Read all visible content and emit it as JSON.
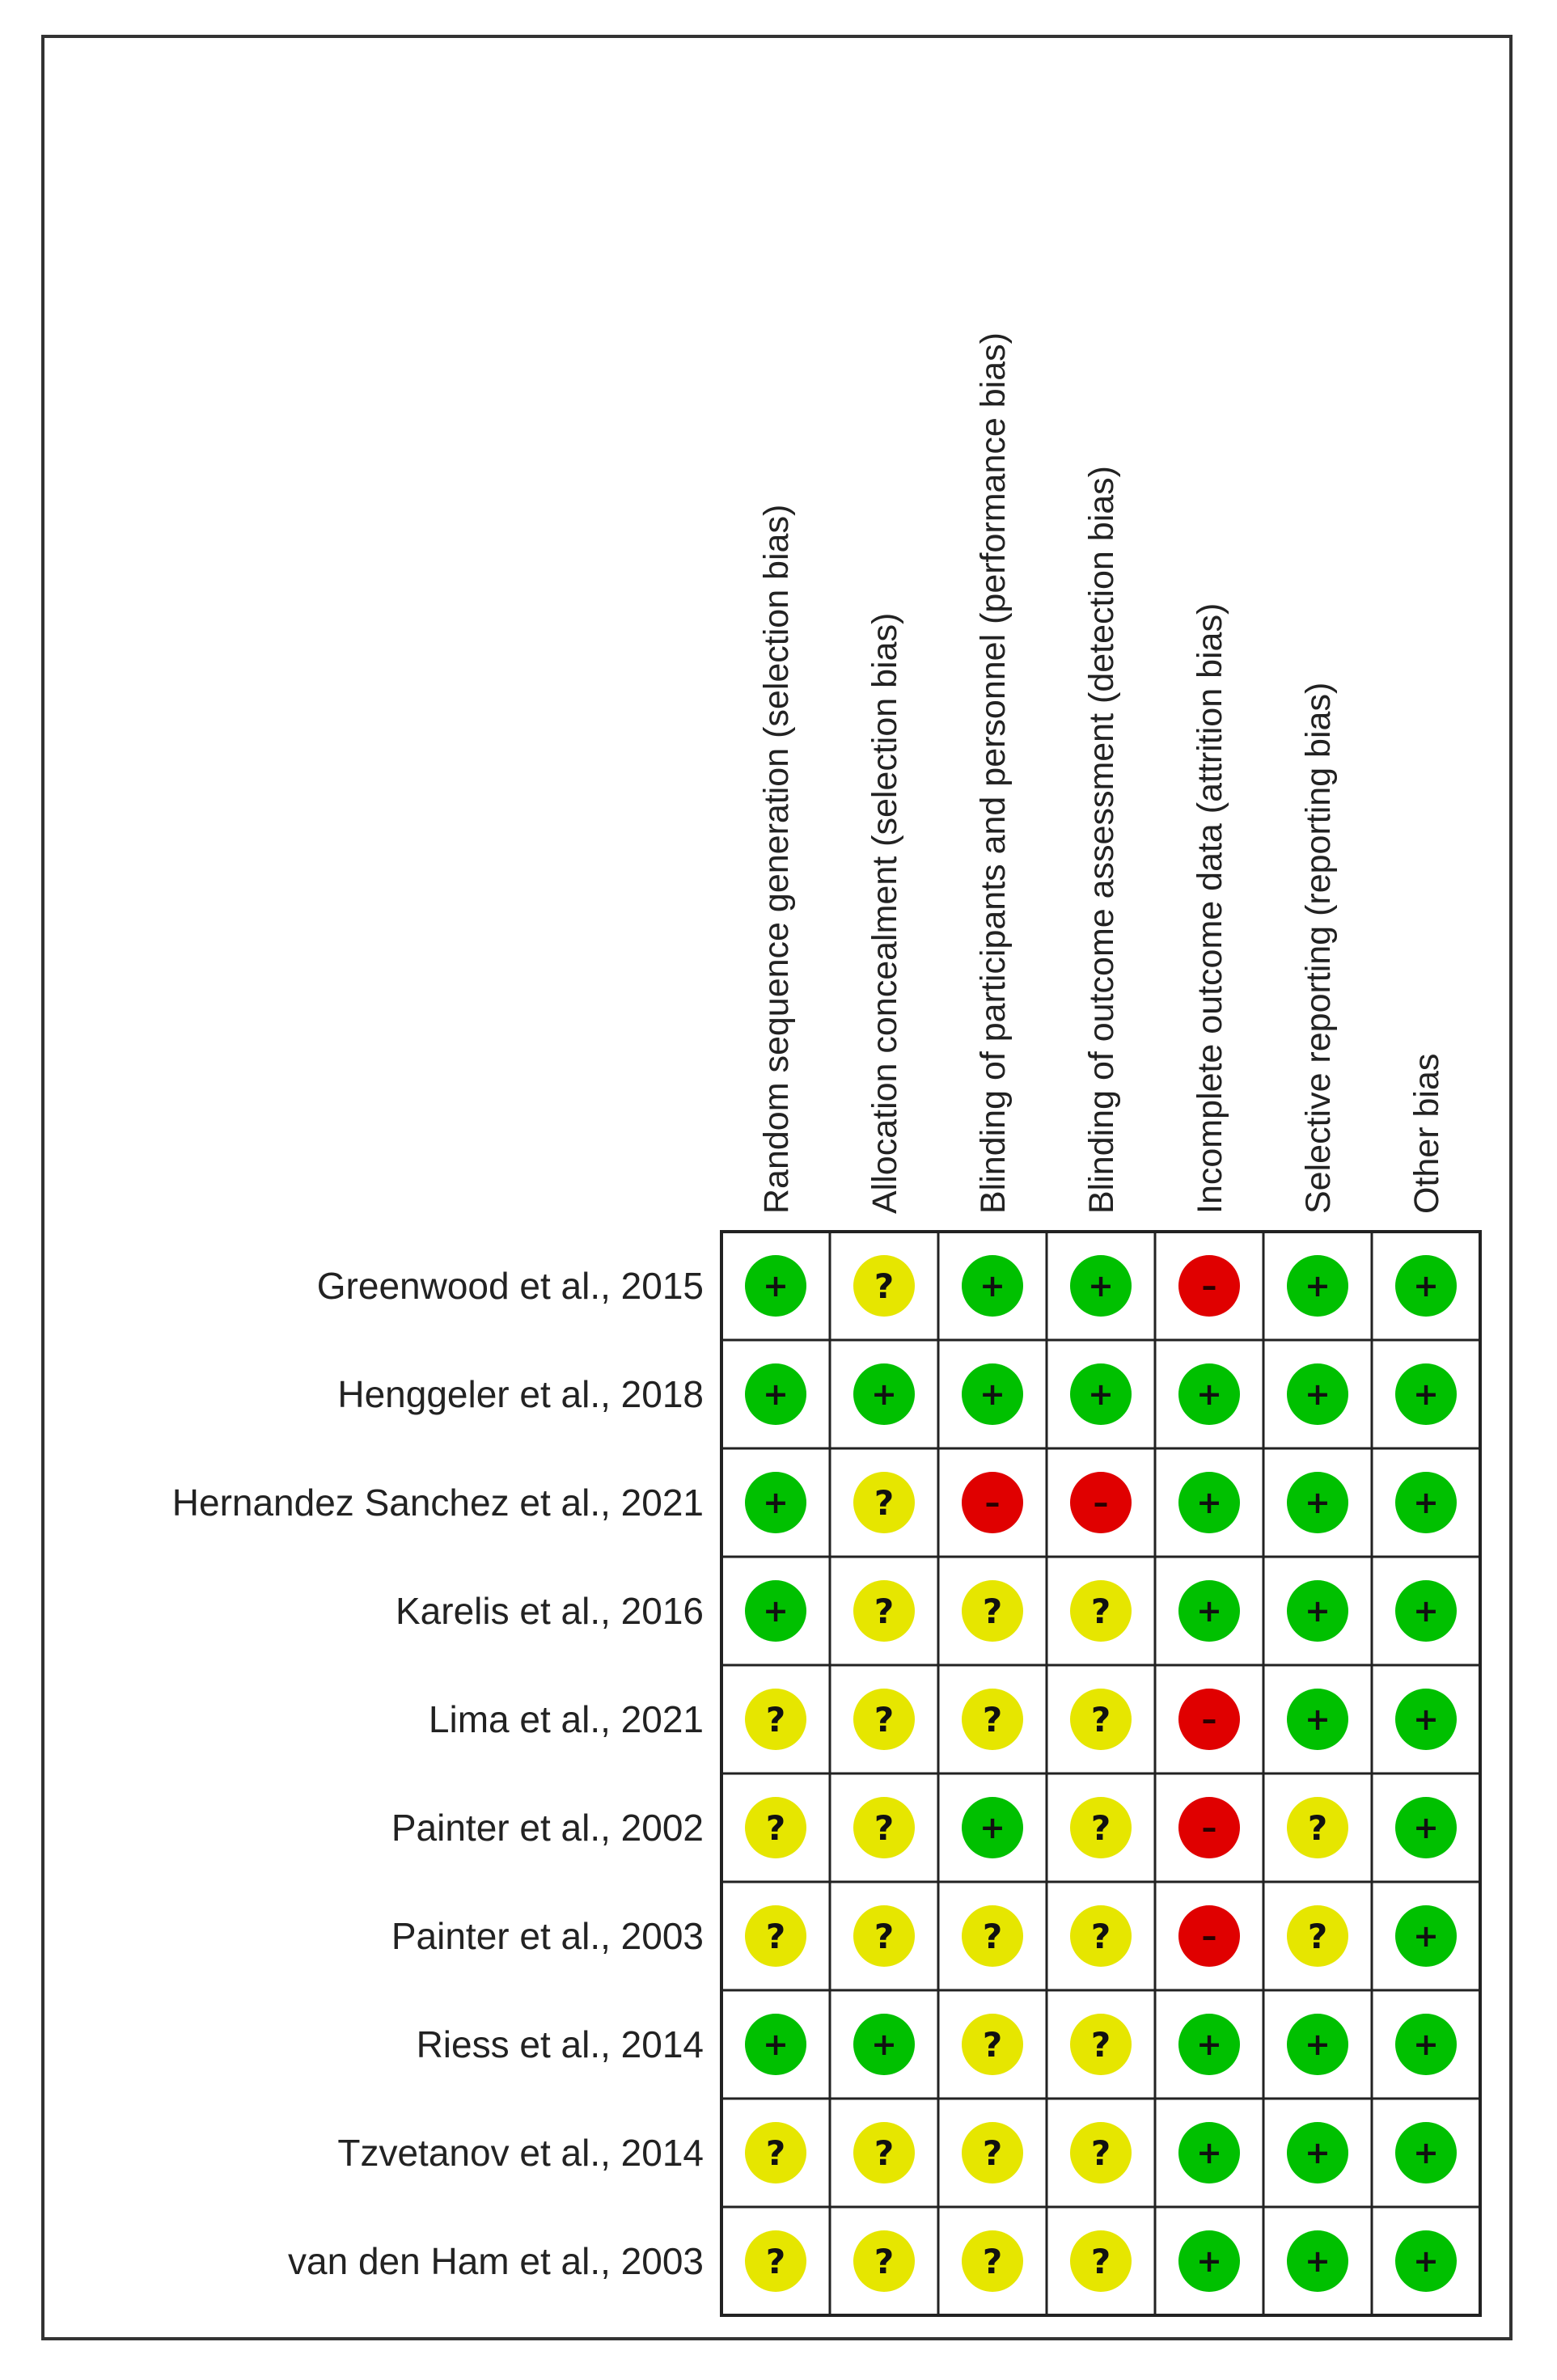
{
  "chart_data": {
    "type": "table",
    "domains": [
      "Random sequence generation (selection bias)",
      "Allocation concealment (selection bias)",
      "Blinding of participants and personnel (performance bias)",
      "Blinding of outcome assessment (detection bias)",
      "Incomplete outcome data (attrition bias)",
      "Selective reporting (reporting bias)",
      "Other bias"
    ],
    "studies": [
      {
        "label": "Greenwood et al., 2015",
        "judgements": [
          "low",
          "unclear",
          "low",
          "low",
          "high",
          "low",
          "low"
        ]
      },
      {
        "label": "Henggeler et al., 2018",
        "judgements": [
          "low",
          "low",
          "low",
          "low",
          "low",
          "low",
          "low"
        ]
      },
      {
        "label": "Hernandez Sanchez et al., 2021",
        "judgements": [
          "low",
          "unclear",
          "high",
          "high",
          "low",
          "low",
          "low"
        ]
      },
      {
        "label": "Karelis et al., 2016",
        "judgements": [
          "low",
          "unclear",
          "unclear",
          "unclear",
          "low",
          "low",
          "low"
        ]
      },
      {
        "label": "Lima et al., 2021",
        "judgements": [
          "unclear",
          "unclear",
          "unclear",
          "unclear",
          "high",
          "low",
          "low"
        ]
      },
      {
        "label": "Painter et al., 2002",
        "judgements": [
          "unclear",
          "unclear",
          "low",
          "unclear",
          "high",
          "unclear",
          "low"
        ]
      },
      {
        "label": "Painter et al., 2003",
        "judgements": [
          "unclear",
          "unclear",
          "unclear",
          "unclear",
          "high",
          "unclear",
          "low"
        ]
      },
      {
        "label": "Riess et al., 2014",
        "judgements": [
          "low",
          "low",
          "unclear",
          "unclear",
          "low",
          "low",
          "low"
        ]
      },
      {
        "label": "Tzvetanov et al., 2014",
        "judgements": [
          "unclear",
          "unclear",
          "unclear",
          "unclear",
          "low",
          "low",
          "low"
        ]
      },
      {
        "label": "van den Ham et al., 2003",
        "judgements": [
          "unclear",
          "unclear",
          "unclear",
          "unclear",
          "low",
          "low",
          "low"
        ]
      }
    ],
    "symbols": {
      "low": {
        "glyph": "+",
        "color": "#00c000"
      },
      "unclear": {
        "glyph": "?",
        "color": "#e6e600"
      },
      "high": {
        "glyph": "–",
        "color": "#e00000"
      }
    }
  }
}
